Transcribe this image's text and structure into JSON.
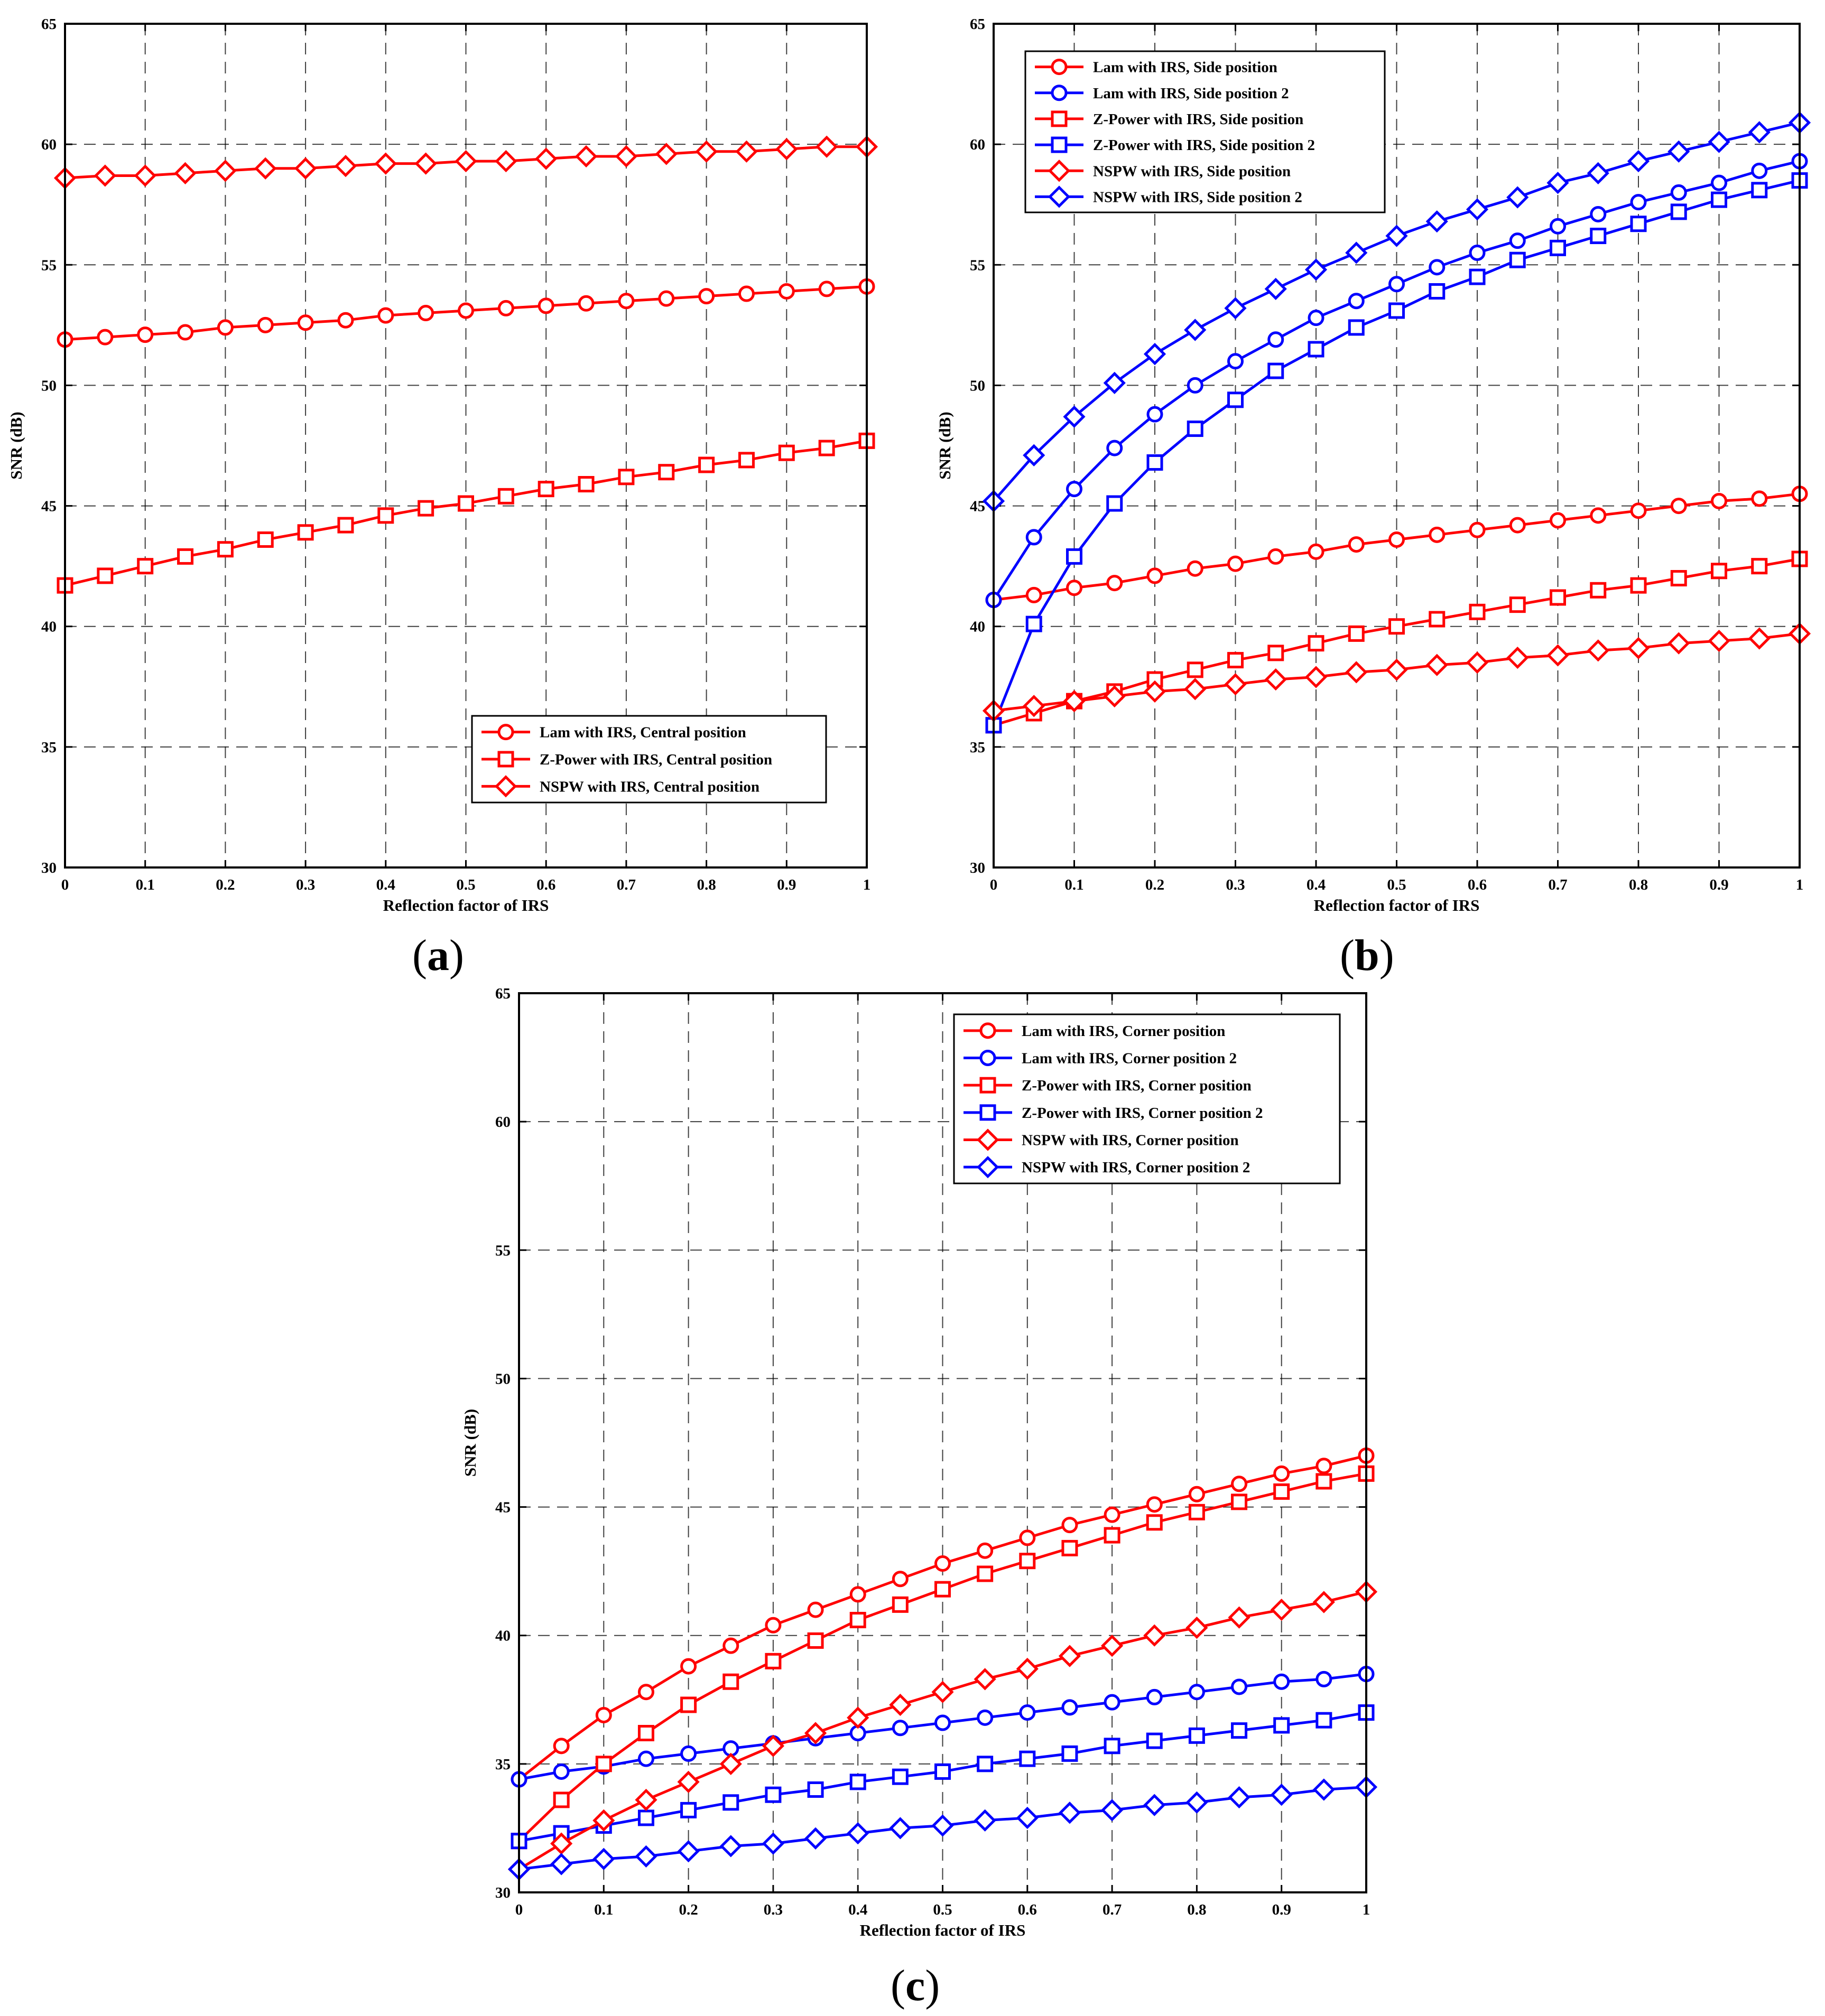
{
  "figure": {
    "panels": [
      {
        "id": "a",
        "label_open": "(",
        "label_letter": "a",
        "label_close": ")"
      },
      {
        "id": "b",
        "label_open": "(",
        "label_letter": "b",
        "label_close": ")"
      },
      {
        "id": "c",
        "label_open": "(",
        "label_letter": "c",
        "label_close": ")"
      }
    ]
  },
  "colors": {
    "red": "#ff0000",
    "blue": "#0000ff",
    "grid": "#000000",
    "axis": "#000000"
  },
  "chart_data": [
    {
      "id": "a",
      "type": "line",
      "title": "",
      "xlabel": "Reflection factor of IRS",
      "ylabel": "SNR (dB)",
      "xlim": [
        0,
        1
      ],
      "ylim": [
        30,
        65
      ],
      "xticks": [
        0,
        0.1,
        0.2,
        0.3,
        0.4,
        0.5,
        0.6,
        0.7,
        0.8,
        0.9,
        1
      ],
      "xtick_labels": [
        "0",
        "0.1",
        "0.2",
        "0.3",
        "0.4",
        "0.5",
        "0.6",
        "0.7",
        "0.8",
        "0.9",
        "1"
      ],
      "yticks": [
        30,
        35,
        40,
        45,
        50,
        55,
        60,
        65
      ],
      "ytick_labels": [
        "30",
        "35",
        "40",
        "45",
        "50",
        "55",
        "60",
        "65"
      ],
      "grid": true,
      "legend_position": "bottom-right",
      "x": [
        0,
        0.05,
        0.1,
        0.15,
        0.2,
        0.25,
        0.3,
        0.35,
        0.4,
        0.45,
        0.5,
        0.55,
        0.6,
        0.65,
        0.7,
        0.75,
        0.8,
        0.85,
        0.9,
        0.95,
        1
      ],
      "series": [
        {
          "name": "Lam with IRS, Central position",
          "color": "red",
          "marker": "circle",
          "values": [
            51.9,
            52.0,
            52.1,
            52.2,
            52.4,
            52.5,
            52.6,
            52.7,
            52.9,
            53.0,
            53.1,
            53.2,
            53.3,
            53.4,
            53.5,
            53.6,
            53.7,
            53.8,
            53.9,
            54.0,
            54.1
          ]
        },
        {
          "name": "Z-Power with IRS, Central position",
          "color": "red",
          "marker": "square",
          "values": [
            41.7,
            42.1,
            42.5,
            42.9,
            43.2,
            43.6,
            43.9,
            44.2,
            44.6,
            44.9,
            45.1,
            45.4,
            45.7,
            45.9,
            46.2,
            46.4,
            46.7,
            46.9,
            47.2,
            47.4,
            47.7
          ]
        },
        {
          "name": "NSPW with IRS, Central position",
          "color": "red",
          "marker": "diamond",
          "values": [
            58.6,
            58.7,
            58.7,
            58.8,
            58.9,
            59.0,
            59.0,
            59.1,
            59.2,
            59.2,
            59.3,
            59.3,
            59.4,
            59.5,
            59.5,
            59.6,
            59.7,
            59.7,
            59.8,
            59.9,
            59.9
          ]
        }
      ]
    },
    {
      "id": "b",
      "type": "line",
      "title": "",
      "xlabel": "Reflection factor of IRS",
      "ylabel": "SNR (dB)",
      "xlim": [
        0,
        1
      ],
      "ylim": [
        30,
        65
      ],
      "xticks": [
        0,
        0.1,
        0.2,
        0.3,
        0.4,
        0.5,
        0.6,
        0.7,
        0.8,
        0.9,
        1
      ],
      "xtick_labels": [
        "0",
        "0.1",
        "0.2",
        "0.3",
        "0.4",
        "0.5",
        "0.6",
        "0.7",
        "0.8",
        "0.9",
        "1"
      ],
      "yticks": [
        30,
        35,
        40,
        45,
        50,
        55,
        60,
        65
      ],
      "ytick_labels": [
        "30",
        "35",
        "40",
        "45",
        "50",
        "55",
        "60",
        "65"
      ],
      "grid": true,
      "legend_position": "top-left",
      "x": [
        0,
        0.05,
        0.1,
        0.15,
        0.2,
        0.25,
        0.3,
        0.35,
        0.4,
        0.45,
        0.5,
        0.55,
        0.6,
        0.65,
        0.7,
        0.75,
        0.8,
        0.85,
        0.9,
        0.95,
        1
      ],
      "series": [
        {
          "name": "Lam with IRS, Side position",
          "color": "red",
          "marker": "circle",
          "values": [
            41.1,
            41.3,
            41.6,
            41.8,
            42.1,
            42.4,
            42.6,
            42.9,
            43.1,
            43.4,
            43.6,
            43.8,
            44.0,
            44.2,
            44.4,
            44.6,
            44.8,
            45.0,
            45.2,
            45.3,
            45.5
          ]
        },
        {
          "name": "Lam with IRS, Side position 2",
          "color": "blue",
          "marker": "circle",
          "values": [
            41.1,
            43.7,
            45.7,
            47.4,
            48.8,
            50.0,
            51.0,
            51.9,
            52.8,
            53.5,
            54.2,
            54.9,
            55.5,
            56.0,
            56.6,
            57.1,
            57.6,
            58.0,
            58.4,
            58.9,
            59.3
          ]
        },
        {
          "name": "Z-Power with IRS, Side position",
          "color": "red",
          "marker": "square",
          "values": [
            35.9,
            36.4,
            36.9,
            37.3,
            37.8,
            38.2,
            38.6,
            38.9,
            39.3,
            39.7,
            40.0,
            40.3,
            40.6,
            40.9,
            41.2,
            41.5,
            41.7,
            42.0,
            42.3,
            42.5,
            42.8
          ]
        },
        {
          "name": "Z-Power with IRS, Side position 2",
          "color": "blue",
          "marker": "square",
          "values": [
            35.9,
            40.1,
            42.9,
            45.1,
            46.8,
            48.2,
            49.4,
            50.6,
            51.5,
            52.4,
            53.1,
            53.9,
            54.5,
            55.2,
            55.7,
            56.2,
            56.7,
            57.2,
            57.7,
            58.1,
            58.5
          ]
        },
        {
          "name": "NSPW with IRS, Side position",
          "color": "red",
          "marker": "diamond",
          "values": [
            36.5,
            36.7,
            36.9,
            37.1,
            37.3,
            37.4,
            37.6,
            37.8,
            37.9,
            38.1,
            38.2,
            38.4,
            38.5,
            38.7,
            38.8,
            39.0,
            39.1,
            39.3,
            39.4,
            39.5,
            39.7
          ]
        },
        {
          "name": "NSPW with IRS, Side position 2",
          "color": "blue",
          "marker": "diamond",
          "values": [
            45.2,
            47.1,
            48.7,
            50.1,
            51.3,
            52.3,
            53.2,
            54.0,
            54.8,
            55.5,
            56.2,
            56.8,
            57.3,
            57.8,
            58.4,
            58.8,
            59.3,
            59.7,
            60.1,
            60.5,
            60.9
          ]
        }
      ]
    },
    {
      "id": "c",
      "type": "line",
      "title": "",
      "xlabel": "Reflection factor of IRS",
      "ylabel": "SNR (dB)",
      "xlim": [
        0,
        1
      ],
      "ylim": [
        30,
        65
      ],
      "xticks": [
        0,
        0.1,
        0.2,
        0.3,
        0.4,
        0.5,
        0.6,
        0.7,
        0.8,
        0.9,
        1
      ],
      "xtick_labels": [
        "0",
        "0.1",
        "0.2",
        "0.3",
        "0.4",
        "0.5",
        "0.6",
        "0.7",
        "0.8",
        "0.9",
        "1"
      ],
      "yticks": [
        30,
        35,
        40,
        45,
        50,
        55,
        60,
        65
      ],
      "ytick_labels": [
        "30",
        "35",
        "40",
        "45",
        "50",
        "55",
        "60",
        "65"
      ],
      "grid": true,
      "legend_position": "top-right",
      "x": [
        0,
        0.05,
        0.1,
        0.15,
        0.2,
        0.25,
        0.3,
        0.35,
        0.4,
        0.45,
        0.5,
        0.55,
        0.6,
        0.65,
        0.7,
        0.75,
        0.8,
        0.85,
        0.9,
        0.95,
        1
      ],
      "series": [
        {
          "name": "Lam with IRS, Corner position",
          "color": "red",
          "marker": "circle",
          "values": [
            34.4,
            35.7,
            36.9,
            37.8,
            38.8,
            39.6,
            40.4,
            41.0,
            41.6,
            42.2,
            42.8,
            43.3,
            43.8,
            44.3,
            44.7,
            45.1,
            45.5,
            45.9,
            46.3,
            46.6,
            47.0
          ]
        },
        {
          "name": "Lam with IRS, Corner position 2",
          "color": "blue",
          "marker": "circle",
          "values": [
            34.4,
            34.7,
            34.9,
            35.2,
            35.4,
            35.6,
            35.8,
            36.0,
            36.2,
            36.4,
            36.6,
            36.8,
            37.0,
            37.2,
            37.4,
            37.6,
            37.8,
            38.0,
            38.2,
            38.3,
            38.5
          ]
        },
        {
          "name": "Z-Power with IRS, Corner position",
          "color": "red",
          "marker": "square",
          "values": [
            32.0,
            33.6,
            35.0,
            36.2,
            37.3,
            38.2,
            39.0,
            39.8,
            40.6,
            41.2,
            41.8,
            42.4,
            42.9,
            43.4,
            43.9,
            44.4,
            44.8,
            45.2,
            45.6,
            46.0,
            46.3
          ]
        },
        {
          "name": "Z-Power with IRS, Corner position 2",
          "color": "blue",
          "marker": "square",
          "values": [
            32.0,
            32.3,
            32.6,
            32.9,
            33.2,
            33.5,
            33.8,
            34.0,
            34.3,
            34.5,
            34.7,
            35.0,
            35.2,
            35.4,
            35.7,
            35.9,
            36.1,
            36.3,
            36.5,
            36.7,
            37.0
          ]
        },
        {
          "name": "NSPW with IRS, Corner position",
          "color": "red",
          "marker": "diamond",
          "values": [
            30.9,
            31.9,
            32.8,
            33.6,
            34.3,
            35.0,
            35.7,
            36.2,
            36.8,
            37.3,
            37.8,
            38.3,
            38.7,
            39.2,
            39.6,
            40.0,
            40.3,
            40.7,
            41.0,
            41.3,
            41.7
          ]
        },
        {
          "name": "NSPW with IRS, Corner position 2",
          "color": "blue",
          "marker": "diamond",
          "values": [
            30.9,
            31.1,
            31.3,
            31.4,
            31.6,
            31.8,
            31.9,
            32.1,
            32.3,
            32.5,
            32.6,
            32.8,
            32.9,
            33.1,
            33.2,
            33.4,
            33.5,
            33.7,
            33.8,
            34.0,
            34.1
          ]
        }
      ]
    }
  ]
}
